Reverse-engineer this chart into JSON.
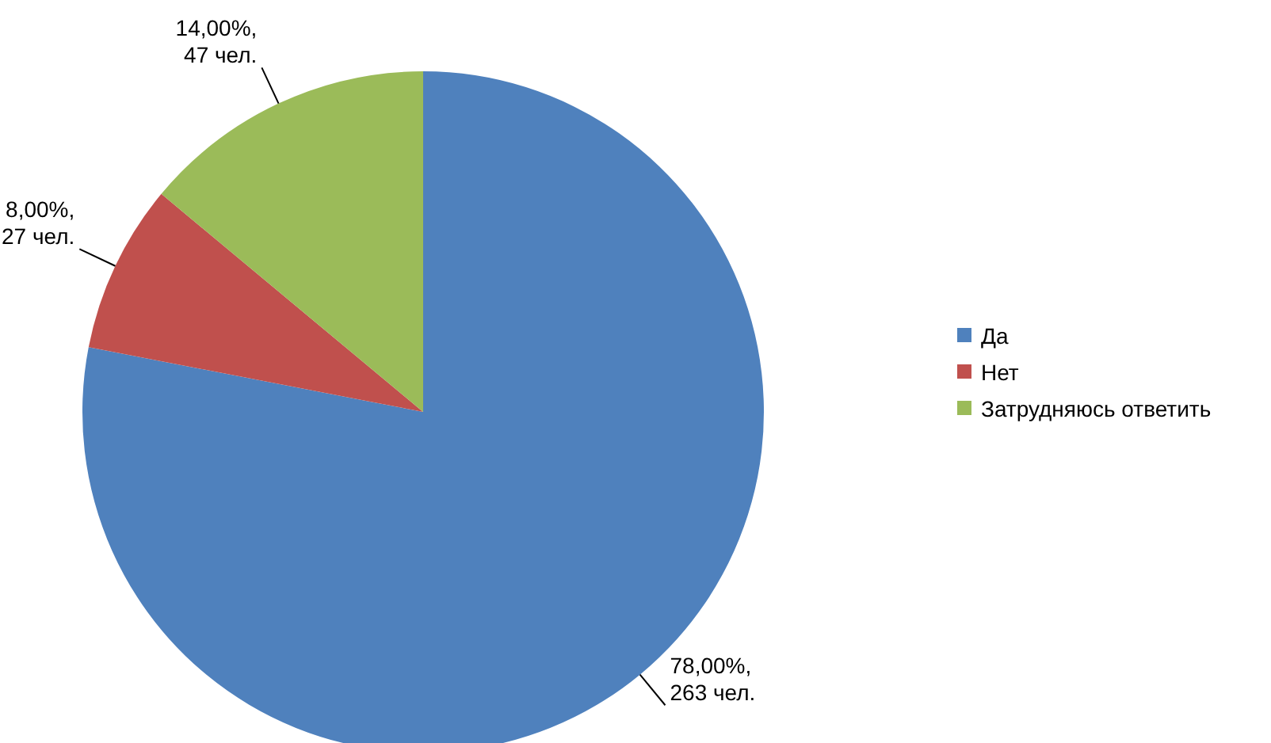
{
  "chart_data": {
    "type": "pie",
    "categories": [
      "Да",
      "Нет",
      "Затрудняюсь ответить"
    ],
    "values": [
      263,
      27,
      47
    ],
    "colors": [
      "#4f81bd",
      "#c0504d",
      "#9bbb59"
    ],
    "value_labels": [
      "78,00%,\n263 чел.",
      "8,00%,\n27 чел.",
      "14,00%,\n47 чел."
    ],
    "legend": "right"
  }
}
